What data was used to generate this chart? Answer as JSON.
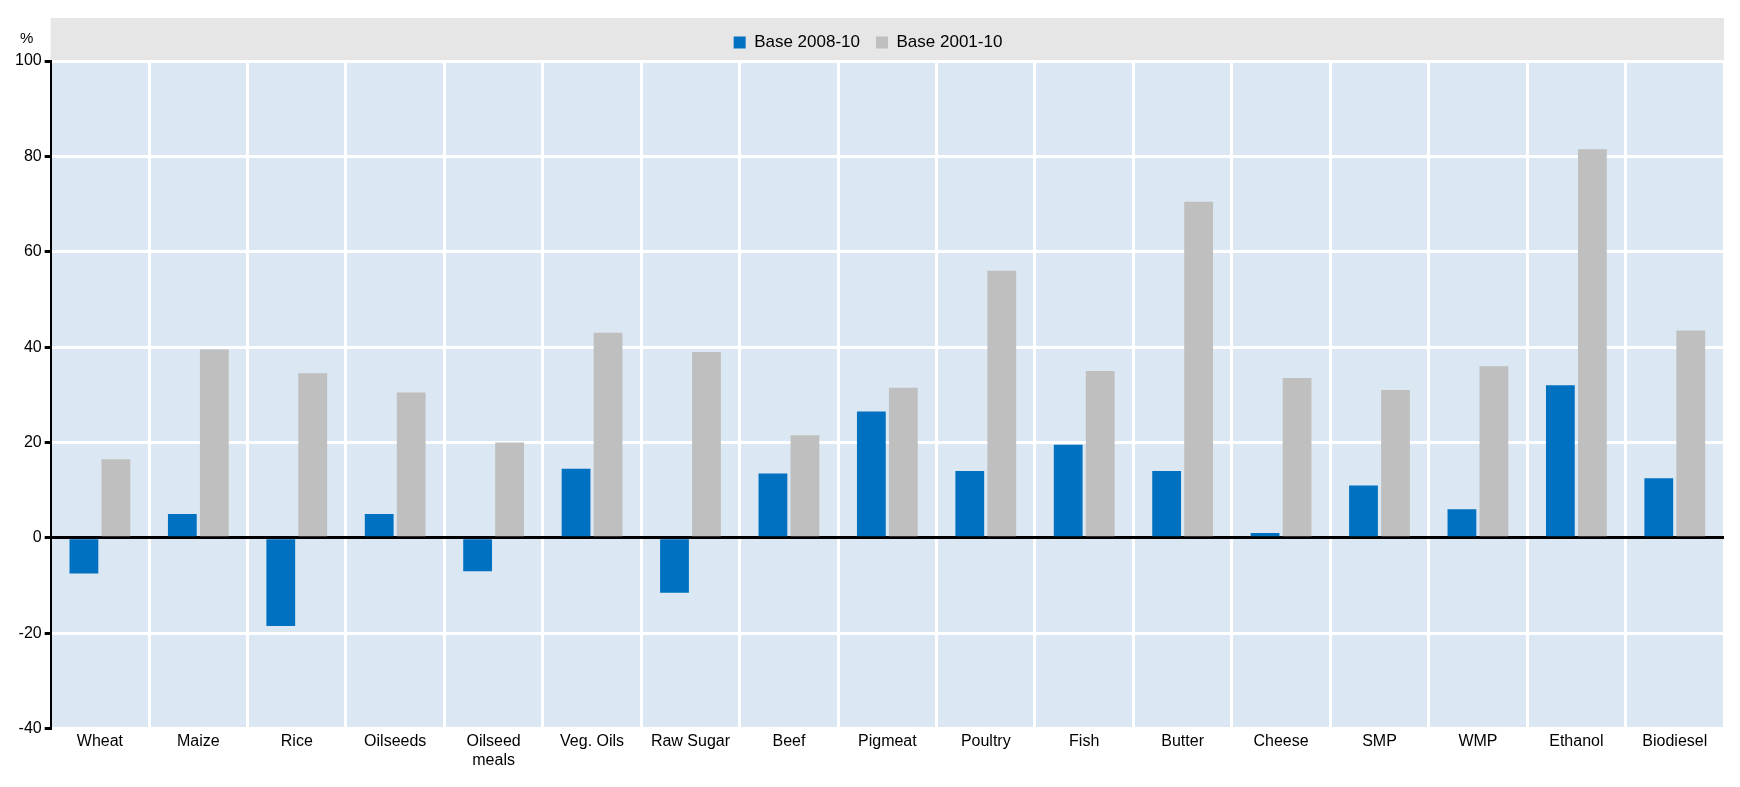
{
  "chart_data": {
    "type": "bar",
    "ylabel": "%",
    "categories": [
      "Wheat",
      "Maize",
      "Rice",
      "Oilseeds",
      "Oilseed meals",
      "Veg. Oils",
      "Raw Sugar",
      "Beef",
      "Pigmeat",
      "Poultry",
      "Fish",
      "Butter",
      "Cheese",
      "SMP",
      "WMP",
      "Ethanol",
      "Biodiesel"
    ],
    "series": [
      {
        "name": "Base 2008-10",
        "color": "#0070c0",
        "values": [
          -7.5,
          5,
          -18.5,
          5,
          -7,
          14.5,
          -11.5,
          13.5,
          26.5,
          14,
          19.5,
          14,
          1,
          11,
          6,
          32,
          12.5
        ]
      },
      {
        "name": "Base 2001-10",
        "color": "#bfbfbf",
        "values": [
          16.5,
          39.5,
          34.5,
          30.5,
          20,
          43,
          39,
          21.5,
          31.5,
          56,
          35,
          70.5,
          33.5,
          31,
          36,
          81.5,
          43.5
        ]
      }
    ],
    "ylim": [
      -40,
      100
    ],
    "yticks": [
      -40,
      -20,
      0,
      20,
      40,
      60,
      80,
      100
    ],
    "grid": true,
    "legend": "top"
  }
}
